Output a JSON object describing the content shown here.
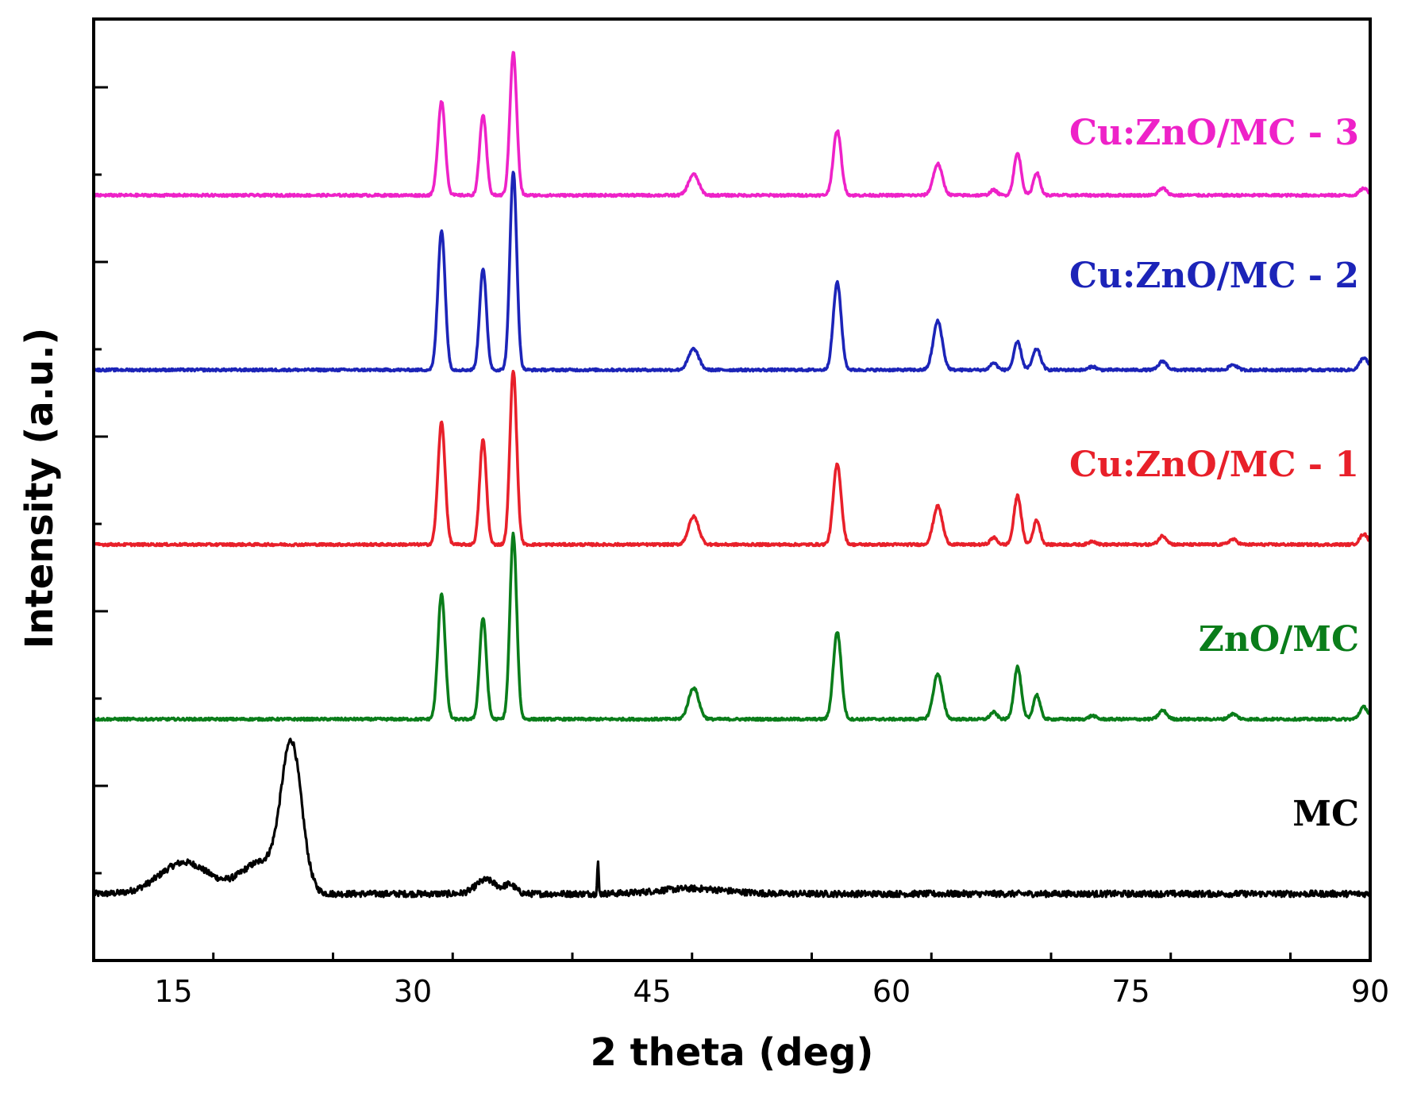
{
  "chart_data": {
    "type": "line",
    "title": "",
    "xlabel": "2 theta (deg)",
    "ylabel": "Intensity (a.u.)",
    "xlim": [
      10,
      90
    ],
    "xticks": [
      15,
      30,
      45,
      60,
      75,
      90
    ],
    "grid": false,
    "legend": "labels placed beside each trace on the right",
    "series": [
      {
        "name": "MC",
        "color": "#000000",
        "baseline": 0.0,
        "peaks": [
          {
            "x": 15.7,
            "h": 0.18,
            "w": 2.2
          },
          {
            "x": 20.5,
            "h": 0.18,
            "w": 1.8
          },
          {
            "x": 22.4,
            "h": 0.82,
            "w": 0.9
          },
          {
            "x": 34.6,
            "h": 0.08,
            "w": 0.9
          },
          {
            "x": 36.1,
            "h": 0.05,
            "w": 0.5
          },
          {
            "x": 41.6,
            "h": 0.18,
            "w": 0.06
          },
          {
            "x": 47.5,
            "h": 0.03,
            "w": 3.0
          }
        ]
      },
      {
        "name": "ZnO/MC",
        "color": "#0a7d1a",
        "baseline": 1.0,
        "peaks": [
          {
            "x": 31.8,
            "h": 0.72,
            "w": 0.32
          },
          {
            "x": 34.4,
            "h": 0.58,
            "w": 0.3
          },
          {
            "x": 36.3,
            "h": 1.06,
            "w": 0.3
          },
          {
            "x": 47.6,
            "h": 0.18,
            "w": 0.45
          },
          {
            "x": 56.6,
            "h": 0.5,
            "w": 0.35
          },
          {
            "x": 62.9,
            "h": 0.26,
            "w": 0.4
          },
          {
            "x": 66.4,
            "h": 0.04,
            "w": 0.3
          },
          {
            "x": 67.9,
            "h": 0.3,
            "w": 0.32
          },
          {
            "x": 69.1,
            "h": 0.14,
            "w": 0.3
          },
          {
            "x": 72.6,
            "h": 0.02,
            "w": 0.3
          },
          {
            "x": 77.0,
            "h": 0.05,
            "w": 0.35
          },
          {
            "x": 81.4,
            "h": 0.03,
            "w": 0.35
          },
          {
            "x": 89.6,
            "h": 0.07,
            "w": 0.35
          }
        ]
      },
      {
        "name": "Cu:ZnO/MC - 1",
        "color": "#e8202a",
        "baseline": 2.0,
        "peaks": [
          {
            "x": 31.8,
            "h": 0.7,
            "w": 0.32
          },
          {
            "x": 34.4,
            "h": 0.6,
            "w": 0.3
          },
          {
            "x": 36.3,
            "h": 1.0,
            "w": 0.3
          },
          {
            "x": 47.6,
            "h": 0.16,
            "w": 0.45
          },
          {
            "x": 56.6,
            "h": 0.46,
            "w": 0.35
          },
          {
            "x": 62.9,
            "h": 0.22,
            "w": 0.4
          },
          {
            "x": 66.4,
            "h": 0.04,
            "w": 0.3
          },
          {
            "x": 67.9,
            "h": 0.28,
            "w": 0.32
          },
          {
            "x": 69.1,
            "h": 0.14,
            "w": 0.3
          },
          {
            "x": 72.6,
            "h": 0.02,
            "w": 0.3
          },
          {
            "x": 77.0,
            "h": 0.05,
            "w": 0.35
          },
          {
            "x": 81.4,
            "h": 0.03,
            "w": 0.35
          },
          {
            "x": 89.6,
            "h": 0.06,
            "w": 0.35
          }
        ]
      },
      {
        "name": "Cu:ZnO/MC - 2",
        "color": "#1c24b8",
        "baseline": 3.0,
        "peaks": [
          {
            "x": 31.8,
            "h": 0.8,
            "w": 0.32
          },
          {
            "x": 34.4,
            "h": 0.58,
            "w": 0.3
          },
          {
            "x": 36.3,
            "h": 1.14,
            "w": 0.3
          },
          {
            "x": 47.6,
            "h": 0.12,
            "w": 0.45
          },
          {
            "x": 56.6,
            "h": 0.5,
            "w": 0.35
          },
          {
            "x": 62.9,
            "h": 0.28,
            "w": 0.4
          },
          {
            "x": 66.4,
            "h": 0.04,
            "w": 0.3
          },
          {
            "x": 67.9,
            "h": 0.16,
            "w": 0.32
          },
          {
            "x": 69.1,
            "h": 0.12,
            "w": 0.35
          },
          {
            "x": 72.6,
            "h": 0.02,
            "w": 0.3
          },
          {
            "x": 77.0,
            "h": 0.05,
            "w": 0.35
          },
          {
            "x": 81.4,
            "h": 0.03,
            "w": 0.35
          },
          {
            "x": 89.6,
            "h": 0.07,
            "w": 0.35
          }
        ]
      },
      {
        "name": "Cu:ZnO/MC - 3",
        "color": "#ee22c8",
        "baseline": 4.0,
        "peaks": [
          {
            "x": 31.8,
            "h": 0.54,
            "w": 0.32
          },
          {
            "x": 34.4,
            "h": 0.46,
            "w": 0.3
          },
          {
            "x": 36.3,
            "h": 0.82,
            "w": 0.3
          },
          {
            "x": 47.6,
            "h": 0.12,
            "w": 0.45
          },
          {
            "x": 56.6,
            "h": 0.37,
            "w": 0.35
          },
          {
            "x": 62.9,
            "h": 0.18,
            "w": 0.4
          },
          {
            "x": 66.4,
            "h": 0.03,
            "w": 0.3
          },
          {
            "x": 67.9,
            "h": 0.24,
            "w": 0.32
          },
          {
            "x": 69.1,
            "h": 0.13,
            "w": 0.3
          },
          {
            "x": 77.0,
            "h": 0.04,
            "w": 0.35
          },
          {
            "x": 89.6,
            "h": 0.04,
            "w": 0.35
          }
        ]
      }
    ]
  }
}
